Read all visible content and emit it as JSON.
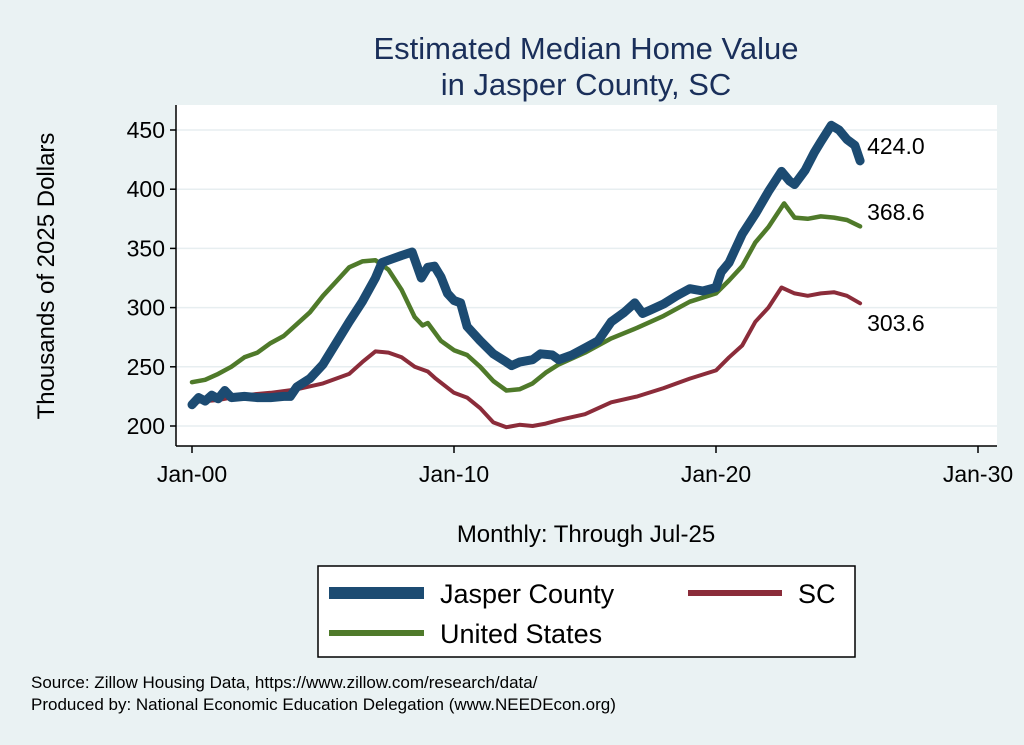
{
  "chart_data": {
    "type": "line",
    "title": [
      "Estimated Median Home Value",
      "in Jasper County, SC"
    ],
    "xlabel": "Monthly: Through Jul-25",
    "ylabel": "Thousands of 2025 Dollars",
    "xlim": [
      2000,
      2030
    ],
    "ylim": [
      200,
      450
    ],
    "x_ticks": [
      {
        "value": 2000,
        "label": "Jan-00"
      },
      {
        "value": 2010,
        "label": "Jan-10"
      },
      {
        "value": 2020,
        "label": "Jan-20"
      },
      {
        "value": 2030,
        "label": "Jan-30"
      }
    ],
    "y_ticks": [
      200,
      250,
      300,
      350,
      400,
      450
    ],
    "grid": "horizontal",
    "legend_position": "bottom",
    "series": [
      {
        "name": "Jasper County",
        "color": "#1c4b72",
        "end_label": "424.0",
        "points": [
          [
            2000.0,
            218
          ],
          [
            2000.25,
            224
          ],
          [
            2000.5,
            221
          ],
          [
            2000.75,
            226
          ],
          [
            2001.0,
            223
          ],
          [
            2001.25,
            230
          ],
          [
            2001.5,
            224
          ],
          [
            2002.0,
            225
          ],
          [
            2002.5,
            224
          ],
          [
            2003.0,
            224
          ],
          [
            2003.5,
            225
          ],
          [
            2003.75,
            225
          ],
          [
            2004.0,
            233
          ],
          [
            2004.5,
            240
          ],
          [
            2005.0,
            252
          ],
          [
            2005.5,
            270
          ],
          [
            2006.0,
            288
          ],
          [
            2006.5,
            305
          ],
          [
            2007.0,
            325
          ],
          [
            2007.25,
            338
          ],
          [
            2007.5,
            340
          ],
          [
            2008.0,
            344
          ],
          [
            2008.4,
            347
          ],
          [
            2008.75,
            325
          ],
          [
            2009.0,
            334
          ],
          [
            2009.25,
            335
          ],
          [
            2009.5,
            326
          ],
          [
            2009.75,
            312
          ],
          [
            2010.0,
            306
          ],
          [
            2010.25,
            304
          ],
          [
            2010.5,
            284
          ],
          [
            2011.0,
            272
          ],
          [
            2011.5,
            261
          ],
          [
            2012.0,
            254
          ],
          [
            2012.2,
            251
          ],
          [
            2012.5,
            254
          ],
          [
            2013.0,
            256
          ],
          [
            2013.3,
            261
          ],
          [
            2013.75,
            260
          ],
          [
            2014.0,
            256
          ],
          [
            2014.5,
            260
          ],
          [
            2015.0,
            266
          ],
          [
            2015.5,
            272
          ],
          [
            2016.0,
            288
          ],
          [
            2016.5,
            296
          ],
          [
            2016.9,
            304
          ],
          [
            2017.2,
            295
          ],
          [
            2017.5,
            298
          ],
          [
            2018.0,
            303
          ],
          [
            2018.5,
            310
          ],
          [
            2019.0,
            316
          ],
          [
            2019.5,
            314
          ],
          [
            2020.0,
            317
          ],
          [
            2020.2,
            330
          ],
          [
            2020.5,
            338
          ],
          [
            2021.0,
            362
          ],
          [
            2021.5,
            379
          ],
          [
            2022.0,
            398
          ],
          [
            2022.5,
            415
          ],
          [
            2022.8,
            407
          ],
          [
            2023.0,
            404
          ],
          [
            2023.4,
            416
          ],
          [
            2023.75,
            431
          ],
          [
            2024.0,
            440
          ],
          [
            2024.4,
            454
          ],
          [
            2024.7,
            450
          ],
          [
            2025.0,
            442
          ],
          [
            2025.3,
            437
          ],
          [
            2025.5,
            424
          ]
        ]
      },
      {
        "name": "SC",
        "color": "#8b2c3a",
        "end_label": "303.6",
        "points": [
          [
            2000.0,
            220
          ],
          [
            2001.0,
            222
          ],
          [
            2002.0,
            226
          ],
          [
            2003.0,
            228
          ],
          [
            2004.0,
            231
          ],
          [
            2005.0,
            236
          ],
          [
            2006.0,
            244
          ],
          [
            2006.5,
            254
          ],
          [
            2007.0,
            263
          ],
          [
            2007.5,
            262
          ],
          [
            2008.0,
            258
          ],
          [
            2008.5,
            250
          ],
          [
            2009.0,
            246
          ],
          [
            2009.3,
            240
          ],
          [
            2010.0,
            228
          ],
          [
            2010.5,
            224
          ],
          [
            2011.0,
            215
          ],
          [
            2011.5,
            203
          ],
          [
            2012.0,
            199
          ],
          [
            2012.5,
            201
          ],
          [
            2013.0,
            200
          ],
          [
            2013.5,
            202
          ],
          [
            2014.0,
            205
          ],
          [
            2015.0,
            210
          ],
          [
            2016.0,
            220
          ],
          [
            2017.0,
            225
          ],
          [
            2018.0,
            232
          ],
          [
            2019.0,
            240
          ],
          [
            2020.0,
            247
          ],
          [
            2020.5,
            258
          ],
          [
            2021.0,
            268
          ],
          [
            2021.5,
            288
          ],
          [
            2022.0,
            300
          ],
          [
            2022.5,
            317
          ],
          [
            2023.0,
            312
          ],
          [
            2023.5,
            310
          ],
          [
            2024.0,
            312
          ],
          [
            2024.5,
            313
          ],
          [
            2025.0,
            310
          ],
          [
            2025.5,
            303.6
          ]
        ]
      },
      {
        "name": "United States",
        "color": "#4f7a2a",
        "end_label": "368.6",
        "points": [
          [
            2000.0,
            237
          ],
          [
            2000.5,
            239
          ],
          [
            2001.0,
            244
          ],
          [
            2001.5,
            250
          ],
          [
            2002.0,
            258
          ],
          [
            2002.5,
            262
          ],
          [
            2003.0,
            270
          ],
          [
            2003.5,
            276
          ],
          [
            2004.0,
            286
          ],
          [
            2004.5,
            296
          ],
          [
            2005.0,
            310
          ],
          [
            2005.5,
            322
          ],
          [
            2006.0,
            334
          ],
          [
            2006.5,
            339
          ],
          [
            2007.0,
            340
          ],
          [
            2007.5,
            332
          ],
          [
            2008.0,
            315
          ],
          [
            2008.5,
            292
          ],
          [
            2008.8,
            285
          ],
          [
            2009.0,
            287
          ],
          [
            2009.5,
            272
          ],
          [
            2010.0,
            264
          ],
          [
            2010.5,
            260
          ],
          [
            2011.0,
            250
          ],
          [
            2011.5,
            238
          ],
          [
            2012.0,
            230
          ],
          [
            2012.5,
            231
          ],
          [
            2013.0,
            236
          ],
          [
            2013.5,
            245
          ],
          [
            2014.0,
            252
          ],
          [
            2015.0,
            262
          ],
          [
            2016.0,
            274
          ],
          [
            2017.0,
            283
          ],
          [
            2018.0,
            293
          ],
          [
            2019.0,
            305
          ],
          [
            2020.0,
            312
          ],
          [
            2020.5,
            323
          ],
          [
            2021.0,
            335
          ],
          [
            2021.5,
            355
          ],
          [
            2022.0,
            368
          ],
          [
            2022.6,
            388
          ],
          [
            2023.0,
            376
          ],
          [
            2023.5,
            375
          ],
          [
            2024.0,
            377
          ],
          [
            2024.5,
            376
          ],
          [
            2025.0,
            374
          ],
          [
            2025.5,
            368.6
          ]
        ]
      }
    ]
  },
  "footer": {
    "source": "Source: Zillow Housing Data, https://www.zillow.com/research/data/",
    "produced_by": "Produced by: National Economic Education Delegation (www.NEEDEcon.org)"
  }
}
